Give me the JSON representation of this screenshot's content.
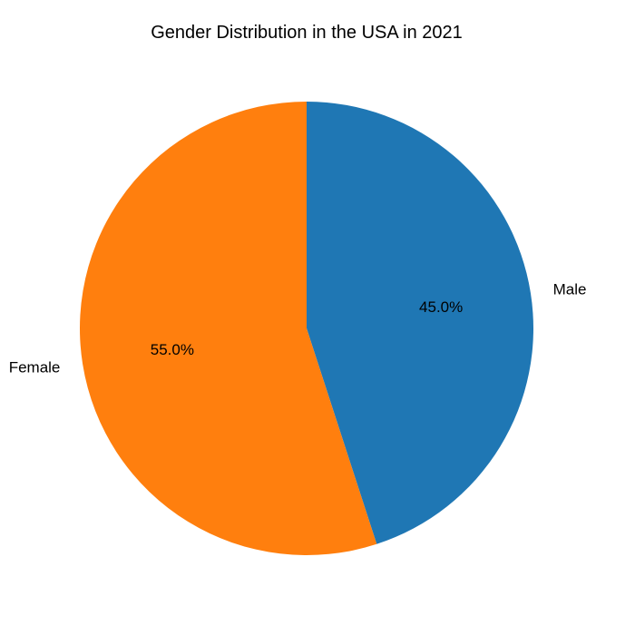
{
  "chart_data": {
    "type": "pie",
    "title": "Gender Distribution in the USA in 2021",
    "categories": [
      "Male",
      "Female"
    ],
    "values": [
      45.0,
      55.0
    ],
    "percent_labels": [
      "45.0%",
      "55.0%"
    ],
    "colors": [
      "#1f77b4",
      "#ff7f0e"
    ],
    "start_angle": "top, clockwise",
    "legend": "none"
  }
}
